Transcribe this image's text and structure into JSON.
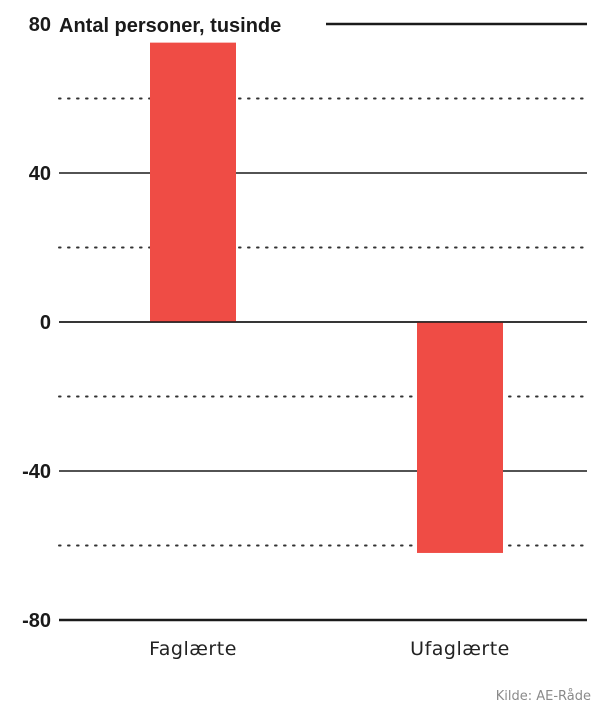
{
  "chart_data": {
    "type": "bar",
    "title": "Antal personer, tusinde",
    "categories": [
      "Faglærte",
      "Ufaglærte"
    ],
    "values": [
      75,
      -62
    ],
    "ylim": [
      -80,
      80
    ],
    "yticks_labeled": [
      80,
      40,
      0,
      -40,
      -80
    ],
    "yticks_dotted": [
      60,
      20,
      -20,
      -60
    ],
    "grid": true,
    "bar_color": "#ef4c45",
    "source": "Kilde: AE-Råde"
  }
}
